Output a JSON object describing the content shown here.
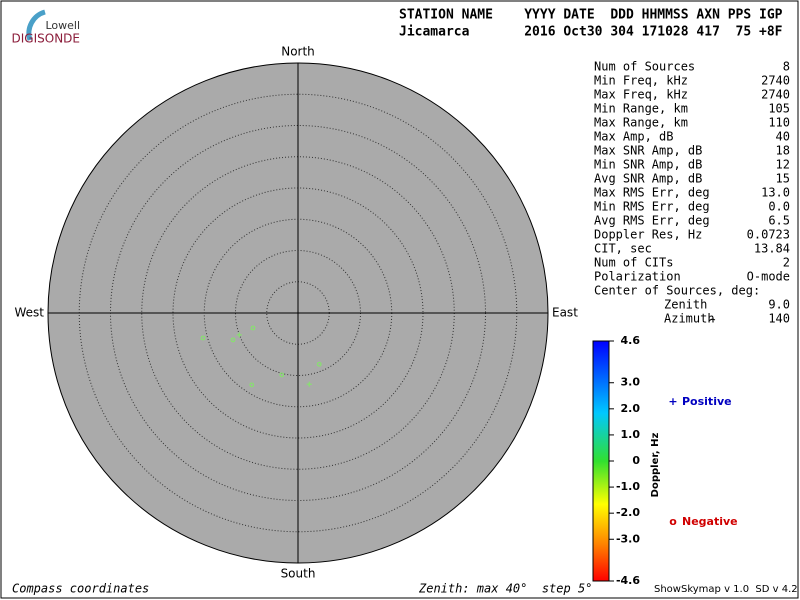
{
  "logo": {
    "top": "Lowell",
    "bottom": "DIGISONDE"
  },
  "header": {
    "columns": "STATION NAME    YYYY DATE  DDD HHMMSS AXN PPS IGP",
    "values": "Jicamarca       2016 Oct30 304 171028 417  75 +8F"
  },
  "stats": {
    "rows": [
      [
        "Num of Sources",
        "8"
      ],
      [
        "Min Freq, kHz",
        "2740"
      ],
      [
        "Max Freq, kHz",
        "2740"
      ],
      [
        "Min Range, km",
        "105"
      ],
      [
        "Max Range, km",
        "110"
      ],
      [
        "Max Amp, dB",
        "40"
      ],
      [
        "Max SNR Amp, dB",
        "18"
      ],
      [
        "Min SNR Amp, dB",
        "12"
      ],
      [
        "Avg SNR Amp, dB",
        "15"
      ],
      [
        "Max RMS Err, deg",
        "13.0"
      ],
      [
        "Min RMS Err, deg",
        "0.0"
      ],
      [
        "Avg RMS Err, deg",
        "6.5"
      ],
      [
        "Doppler Res, Hz",
        "0.0723"
      ],
      [
        "CIT, sec",
        "13.84"
      ],
      [
        "Num of CITs",
        "2"
      ],
      [
        "Polarization",
        "O-mode"
      ],
      [
        "Center of Sources, deg:"
      ],
      [
        "Zenith",
        "9.0"
      ],
      [
        "Azimuth",
        "140"
      ]
    ]
  },
  "chart_data": {
    "type": "polar-scatter",
    "directions": {
      "north": "North",
      "south": "South",
      "east": "East",
      "west": "West"
    },
    "xlim": [
      -40,
      40
    ],
    "ylim": [
      -40,
      40
    ],
    "rticks": [
      5,
      10,
      15,
      20,
      25,
      30,
      35
    ],
    "series": [
      {
        "color": "#88e070",
        "markers": [
          "o",
          "o",
          "+",
          "o",
          "o",
          "o",
          "o",
          "+"
        ],
        "x": [
          -15.2,
          -10.4,
          -9.4,
          -7.2,
          -2.6,
          -7.4,
          3.4,
          1.8
        ],
        "y": [
          -4.0,
          -4.3,
          -3.5,
          -2.4,
          -9.9,
          -11.5,
          -8.2,
          -11.4
        ]
      }
    ],
    "colorbar": {
      "label": "Doppler, Hz",
      "lim": [
        -4.6,
        4.6
      ],
      "ticks": [
        4.6,
        {
          "value": 3,
          "label": "3.0"
        },
        {
          "value": 2,
          "label": "2.0"
        },
        {
          "value": 1,
          "label": "1.0"
        },
        0,
        {
          "value": -1,
          "label": "-1.0"
        },
        {
          "value": -2,
          "label": "-2.0"
        },
        {
          "value": -3,
          "label": "-3.0"
        },
        -4.6
      ]
    },
    "legend": [
      {
        "symbol": "+",
        "name": "Positive",
        "color": "#0000c0"
      },
      {
        "symbol": "o",
        "name": "Negative",
        "color": "#d00000"
      }
    ]
  },
  "footer": {
    "left": "Compass coordinates",
    "center": "Zenith: max 40°  step 5°",
    "right": "ShowSkymap v 1.0  SD v 4.2"
  }
}
